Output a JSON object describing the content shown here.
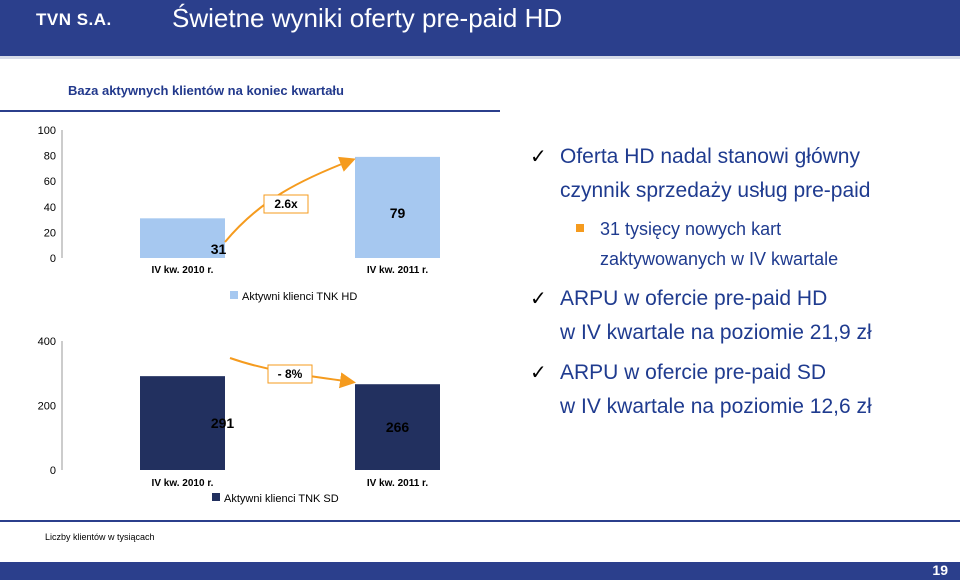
{
  "header": {
    "logo": "TVN S.A.",
    "title": "Świetne wyniki oferty pre-paid HD"
  },
  "subtitle": "Baza aktywnych klientów na koniec kwartału",
  "note": "Liczby klientów w tysiącach",
  "page_number": "19",
  "colors": {
    "header": "#2b3f8c",
    "hd_bar": "#a6c8f0",
    "sd_bar": "#22305f",
    "arrow": "#f59b1e",
    "bullet_text": "#1f3b8f",
    "square": "#f59b1e"
  },
  "bullets": [
    {
      "text1": "Oferta HD nadal stanowi główny",
      "text2": "czynnik sprzedaży usług pre-paid"
    },
    {
      "text1": "ARPU w ofercie pre-paid HD",
      "text2": "w IV kwartale na poziomie 21,9 zł"
    },
    {
      "text1": "ARPU w ofercie pre-paid SD",
      "text2": "w IV kwartale na poziomie 12,6 zł"
    }
  ],
  "sub_bullet": {
    "text1": "31 tysięcy nowych kart",
    "text2": "zaktywowanych w IV kwartale"
  },
  "chart_data": [
    {
      "type": "bar",
      "categories": [
        "IV kw. 2010 r.",
        "IV kw. 2011 r."
      ],
      "series": [
        {
          "name": "Aktywni klienci TNK HD",
          "values": [
            31,
            79
          ]
        }
      ],
      "value_labels": [
        "31",
        "79"
      ],
      "yticks": [
        "0",
        "20",
        "40",
        "60",
        "80",
        "100"
      ],
      "ylim": [
        0,
        100
      ],
      "annotation": "2.6x",
      "legend_position": "bottom"
    },
    {
      "type": "bar",
      "categories": [
        "IV kw. 2010 r.",
        "IV kw. 2011 r."
      ],
      "series": [
        {
          "name": "Aktywni klienci TNK SD",
          "values": [
            291,
            266
          ]
        }
      ],
      "value_labels": [
        "291",
        "266"
      ],
      "yticks": [
        "0",
        "200",
        "400"
      ],
      "ylim": [
        0,
        400
      ],
      "annotation": "- 8%",
      "legend_position": "bottom"
    }
  ]
}
